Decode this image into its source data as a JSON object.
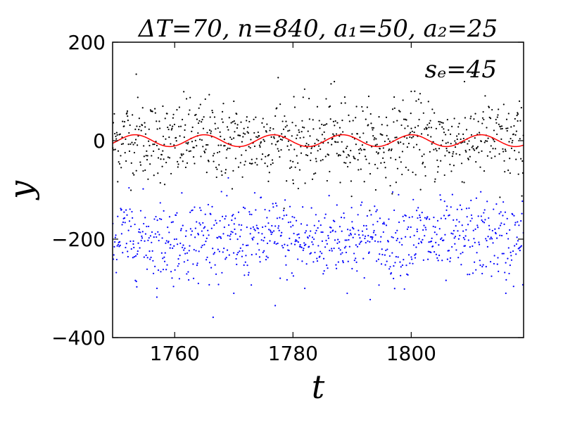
{
  "chart_data": {
    "type": "scatter",
    "title": "ΔT=70, n=840, a₁=50, a₂=25",
    "annotation": "sₑ=45",
    "xlabel": "t",
    "ylabel": "y",
    "xlim": [
      1749.5,
      1819
    ],
    "ylim": [
      -400,
      200
    ],
    "xticks": [
      1760,
      1780,
      1800
    ],
    "yticks": [
      -400,
      -200,
      0,
      200
    ],
    "xtick_labels": [
      "1760",
      "1780",
      "1800"
    ],
    "ytick_labels": [
      "−400",
      "−200",
      "0",
      "200"
    ],
    "grid": false,
    "n_points": 840,
    "series": [
      {
        "kind": "scatter",
        "color": "#000000",
        "center": 0,
        "spread_sd": 45,
        "sample_points": [
          [
            1752,
            60
          ],
          [
            1753.5,
            135
          ],
          [
            1758,
            70
          ],
          [
            1762,
            85
          ],
          [
            1770,
            80
          ],
          [
            1777.5,
            128
          ],
          [
            1787,
            120
          ],
          [
            1800,
            100
          ],
          [
            1809,
            120
          ],
          [
            1818,
            40
          ],
          [
            1755,
            -60
          ],
          [
            1768,
            -70
          ],
          [
            1780,
            -80
          ],
          [
            1794,
            -100
          ],
          [
            1815,
            -115
          ],
          [
            1788,
            -85
          ]
        ]
      },
      {
        "kind": "scatter",
        "color": "#0000ff",
        "center": -200,
        "spread_sd": 45,
        "sample_points": [
          [
            1751,
            -140
          ],
          [
            1757,
            -300
          ],
          [
            1764,
            -290
          ],
          [
            1770,
            -310
          ],
          [
            1777,
            -335
          ],
          [
            1782,
            -300
          ],
          [
            1790,
            -260
          ],
          [
            1797,
            -280
          ],
          [
            1805,
            -120
          ],
          [
            1812,
            -270
          ],
          [
            1816,
            -310
          ],
          [
            1753,
            -210
          ],
          [
            1773,
            -150
          ],
          [
            1801,
            -180
          ]
        ]
      },
      {
        "kind": "line",
        "color": "#ff0000",
        "function": "a1*sin(2*pi*t/period)/a1*12",
        "amplitude": 12,
        "period": 11.7,
        "peaks_at": [
          1753.3,
          1765,
          1776.7,
          1788.4,
          1800.1,
          1811.8
        ]
      }
    ]
  }
}
